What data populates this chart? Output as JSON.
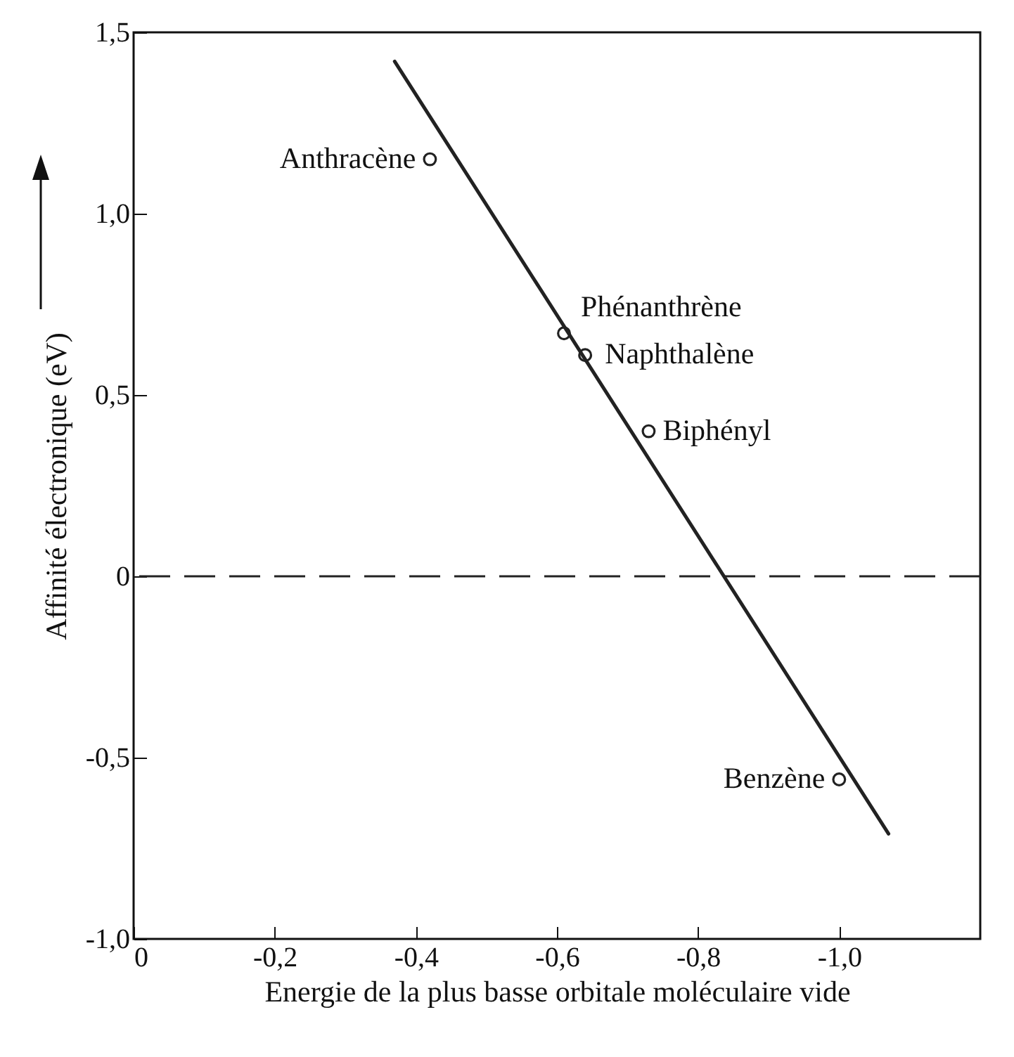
{
  "chart_data": {
    "type": "scatter",
    "xlabel": "Energie de la plus basse orbitale moléculaire vide",
    "ylabel": "Affinité électronique (eV)",
    "series": [
      {
        "marker": "circle",
        "color": "#222222",
        "x": [
          -0.42,
          -0.61,
          -0.64,
          -0.73,
          -1.0
        ],
        "values": [
          1.15,
          0.67,
          0.61,
          0.4,
          -0.56
        ]
      },
      {
        "type": "line",
        "color": "#222222",
        "x": [
          -0.37,
          -1.07
        ],
        "values": [
          1.42,
          -0.71
        ]
      }
    ],
    "annotations": [
      {
        "text": "Anthracène",
        "x": -0.42,
        "y": 1.15
      },
      {
        "text": "Phénanthrène",
        "x": -0.61,
        "y": 0.67
      },
      {
        "text": "Naphthalène",
        "x": -0.64,
        "y": 0.61
      },
      {
        "text": "Biphényl",
        "x": -0.73,
        "y": 0.4
      },
      {
        "text": "Benzène",
        "x": -1.0,
        "y": -0.56
      }
    ],
    "ref_lines": [
      {
        "axis": "y",
        "value": 0,
        "line_style": "dashed",
        "color": "#222222"
      }
    ],
    "xlim": [
      0,
      -1.2
    ],
    "xticks": [
      {
        "value": 0,
        "label": "0"
      },
      {
        "value": -0.2,
        "label": "-0,2"
      },
      {
        "value": -0.4,
        "label": "-0,4"
      },
      {
        "value": -0.6,
        "label": "-0,6"
      },
      {
        "value": -0.8,
        "label": "-0,8"
      },
      {
        "value": -1.0,
        "label": "-1,0"
      }
    ],
    "ylim": [
      -1.0,
      1.5
    ],
    "yticks": [
      {
        "value": -1.0,
        "label": "-1,0"
      },
      {
        "value": -0.5,
        "label": "-0,5"
      },
      {
        "value": 0,
        "label": "0"
      },
      {
        "value": 0.5,
        "label": "0,5"
      },
      {
        "value": 1.0,
        "label": "1,0"
      },
      {
        "value": 1.5,
        "label": "1,5"
      }
    ],
    "grid": false
  }
}
